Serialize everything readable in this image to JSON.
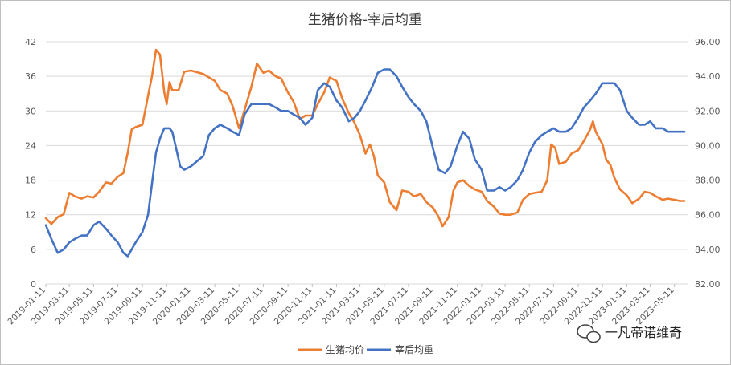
{
  "chart_data": {
    "type": "line",
    "title": "生猪价格-宰后均重",
    "x": [
      "2019-01-11",
      "2019-03-11",
      "2019-05-11",
      "2019-07-11",
      "2019-09-11",
      "2019-11-11",
      "2020-01-11",
      "2020-03-11",
      "2020-05-11",
      "2020-07-11",
      "2020-09-11",
      "2020-11-11",
      "2021-01-11",
      "2021-03-11",
      "2021-05-11",
      "2021-07-11",
      "2021-09-11",
      "2021-11-11",
      "2022-01-11",
      "2022-03-11",
      "2022-05-11",
      "2022-07-11",
      "2022-09-11",
      "2022-11-11",
      "2023-01-11",
      "2023-03-11",
      "2023-05-11"
    ],
    "xlim": [
      "2019-01-11",
      "2023-06-15"
    ],
    "ylim": [
      0,
      42
    ],
    "yticks": [
      "0",
      "6",
      "12",
      "18",
      "24",
      "30",
      "36",
      "42"
    ],
    "y2lim": [
      82,
      96
    ],
    "y2ticks": [
      "82.00",
      "84.00",
      "86.00",
      "88.00",
      "90.00",
      "92.00",
      "94.00",
      "96.00"
    ],
    "series": [
      {
        "name": "生猪均价",
        "axis": "left",
        "color": "#ED7D31",
        "points": [
          [
            "2019-01-11",
            11.4
          ],
          [
            "2019-01-25",
            10.4
          ],
          [
            "2019-02-10",
            11.6
          ],
          [
            "2019-02-25",
            12.1
          ],
          [
            "2019-03-11",
            15.8
          ],
          [
            "2019-03-25",
            15.2
          ],
          [
            "2019-04-11",
            14.8
          ],
          [
            "2019-04-25",
            15.2
          ],
          [
            "2019-05-11",
            15.0
          ],
          [
            "2019-05-25",
            16.0
          ],
          [
            "2019-06-11",
            17.6
          ],
          [
            "2019-06-25",
            17.4
          ],
          [
            "2019-07-11",
            18.6
          ],
          [
            "2019-07-25",
            19.2
          ],
          [
            "2019-08-05",
            22.8
          ],
          [
            "2019-08-15",
            26.8
          ],
          [
            "2019-08-25",
            27.2
          ],
          [
            "2019-09-11",
            27.6
          ],
          [
            "2019-09-25",
            32.6
          ],
          [
            "2019-10-05",
            36.0
          ],
          [
            "2019-10-15",
            40.6
          ],
          [
            "2019-10-25",
            39.8
          ],
          [
            "2019-11-05",
            33.2
          ],
          [
            "2019-11-11",
            31.2
          ],
          [
            "2019-11-18",
            35.0
          ],
          [
            "2019-11-25",
            33.6
          ],
          [
            "2019-12-11",
            33.6
          ],
          [
            "2019-12-25",
            36.8
          ],
          [
            "2020-01-11",
            37.0
          ],
          [
            "2020-02-11",
            36.4
          ],
          [
            "2020-03-11",
            35.2
          ],
          [
            "2020-03-25",
            33.6
          ],
          [
            "2020-04-11",
            33.0
          ],
          [
            "2020-04-25",
            30.8
          ],
          [
            "2020-05-11",
            27.0
          ],
          [
            "2020-05-25",
            30.2
          ],
          [
            "2020-06-11",
            34.2
          ],
          [
            "2020-06-25",
            38.2
          ],
          [
            "2020-07-11",
            36.6
          ],
          [
            "2020-07-25",
            37.0
          ],
          [
            "2020-08-11",
            36.0
          ],
          [
            "2020-08-25",
            35.6
          ],
          [
            "2020-09-11",
            33.2
          ],
          [
            "2020-09-25",
            31.6
          ],
          [
            "2020-10-11",
            28.6
          ],
          [
            "2020-10-25",
            29.2
          ],
          [
            "2020-11-11",
            29.2
          ],
          [
            "2020-11-25",
            31.2
          ],
          [
            "2020-12-11",
            33.2
          ],
          [
            "2020-12-25",
            35.8
          ],
          [
            "2021-01-11",
            35.2
          ],
          [
            "2021-01-25",
            32.2
          ],
          [
            "2021-02-11",
            29.6
          ],
          [
            "2021-02-25",
            28.0
          ],
          [
            "2021-03-11",
            25.8
          ],
          [
            "2021-03-25",
            22.6
          ],
          [
            "2021-04-05",
            24.2
          ],
          [
            "2021-04-15",
            22.2
          ],
          [
            "2021-04-25",
            18.8
          ],
          [
            "2021-05-11",
            17.6
          ],
          [
            "2021-05-25",
            14.2
          ],
          [
            "2021-06-11",
            12.8
          ],
          [
            "2021-06-25",
            16.2
          ],
          [
            "2021-07-11",
            16.0
          ],
          [
            "2021-07-25",
            15.2
          ],
          [
            "2021-08-11",
            15.6
          ],
          [
            "2021-08-25",
            14.2
          ],
          [
            "2021-09-11",
            13.2
          ],
          [
            "2021-09-25",
            11.6
          ],
          [
            "2021-10-05",
            10.0
          ],
          [
            "2021-10-20",
            11.6
          ],
          [
            "2021-11-01",
            16.2
          ],
          [
            "2021-11-11",
            17.6
          ],
          [
            "2021-11-25",
            18.0
          ],
          [
            "2021-12-11",
            17.0
          ],
          [
            "2021-12-25",
            16.4
          ],
          [
            "2022-01-11",
            16.0
          ],
          [
            "2022-01-25",
            14.4
          ],
          [
            "2022-02-11",
            13.4
          ],
          [
            "2022-02-25",
            12.2
          ],
          [
            "2022-03-11",
            12.0
          ],
          [
            "2022-03-25",
            12.0
          ],
          [
            "2022-04-11",
            12.4
          ],
          [
            "2022-04-25",
            14.6
          ],
          [
            "2022-05-11",
            15.6
          ],
          [
            "2022-05-25",
            15.8
          ],
          [
            "2022-06-11",
            16.0
          ],
          [
            "2022-06-25",
            18.0
          ],
          [
            "2022-07-05",
            24.2
          ],
          [
            "2022-07-15",
            23.6
          ],
          [
            "2022-07-25",
            20.8
          ],
          [
            "2022-08-11",
            21.2
          ],
          [
            "2022-08-25",
            22.6
          ],
          [
            "2022-09-11",
            23.2
          ],
          [
            "2022-09-25",
            24.8
          ],
          [
            "2022-10-11",
            26.8
          ],
          [
            "2022-10-18",
            28.2
          ],
          [
            "2022-10-25",
            26.4
          ],
          [
            "2022-11-11",
            24.2
          ],
          [
            "2022-11-20",
            21.6
          ],
          [
            "2022-12-01",
            20.6
          ],
          [
            "2022-12-11",
            18.4
          ],
          [
            "2022-12-25",
            16.4
          ],
          [
            "2023-01-11",
            15.4
          ],
          [
            "2023-01-25",
            14.0
          ],
          [
            "2023-02-11",
            14.8
          ],
          [
            "2023-02-25",
            16.0
          ],
          [
            "2023-03-11",
            15.8
          ],
          [
            "2023-03-25",
            15.2
          ],
          [
            "2023-04-11",
            14.6
          ],
          [
            "2023-04-25",
            14.8
          ],
          [
            "2023-05-11",
            14.6
          ],
          [
            "2023-05-25",
            14.4
          ],
          [
            "2023-06-05",
            14.4
          ]
        ]
      },
      {
        "name": "宰后均重",
        "axis": "right",
        "color": "#4472C4",
        "points": [
          [
            "2019-01-11",
            85.4
          ],
          [
            "2019-01-25",
            84.6
          ],
          [
            "2019-02-10",
            83.8
          ],
          [
            "2019-02-25",
            84.0
          ],
          [
            "2019-03-11",
            84.4
          ],
          [
            "2019-03-25",
            84.6
          ],
          [
            "2019-04-11",
            84.8
          ],
          [
            "2019-04-25",
            84.8
          ],
          [
            "2019-05-11",
            85.4
          ],
          [
            "2019-05-25",
            85.6
          ],
          [
            "2019-06-11",
            85.2
          ],
          [
            "2019-06-25",
            84.8
          ],
          [
            "2019-07-11",
            84.4
          ],
          [
            "2019-07-25",
            83.8
          ],
          [
            "2019-08-05",
            83.6
          ],
          [
            "2019-08-15",
            84.0
          ],
          [
            "2019-08-25",
            84.4
          ],
          [
            "2019-09-11",
            85.0
          ],
          [
            "2019-09-25",
            86.0
          ],
          [
            "2019-10-05",
            87.8
          ],
          [
            "2019-10-15",
            89.6
          ],
          [
            "2019-10-25",
            90.4
          ],
          [
            "2019-11-05",
            91.0
          ],
          [
            "2019-11-18",
            91.0
          ],
          [
            "2019-11-25",
            90.8
          ],
          [
            "2019-12-05",
            89.8
          ],
          [
            "2019-12-15",
            88.8
          ],
          [
            "2019-12-25",
            88.6
          ],
          [
            "2020-01-11",
            88.8
          ],
          [
            "2020-02-11",
            89.4
          ],
          [
            "2020-02-25",
            90.6
          ],
          [
            "2020-03-11",
            91.0
          ],
          [
            "2020-03-25",
            91.2
          ],
          [
            "2020-04-11",
            91.0
          ],
          [
            "2020-04-25",
            90.8
          ],
          [
            "2020-05-11",
            90.6
          ],
          [
            "2020-05-25",
            91.8
          ],
          [
            "2020-06-11",
            92.4
          ],
          [
            "2020-06-25",
            92.4
          ],
          [
            "2020-07-11",
            92.4
          ],
          [
            "2020-07-25",
            92.4
          ],
          [
            "2020-08-11",
            92.2
          ],
          [
            "2020-08-25",
            92.0
          ],
          [
            "2020-09-11",
            92.0
          ],
          [
            "2020-09-25",
            91.8
          ],
          [
            "2020-10-11",
            91.6
          ],
          [
            "2020-10-25",
            91.2
          ],
          [
            "2020-11-11",
            91.6
          ],
          [
            "2020-11-25",
            93.2
          ],
          [
            "2020-12-11",
            93.6
          ],
          [
            "2020-12-25",
            93.4
          ],
          [
            "2021-01-11",
            92.6
          ],
          [
            "2021-01-25",
            92.2
          ],
          [
            "2021-02-11",
            91.4
          ],
          [
            "2021-02-25",
            91.6
          ],
          [
            "2021-03-11",
            92.0
          ],
          [
            "2021-03-25",
            92.6
          ],
          [
            "2021-04-11",
            93.4
          ],
          [
            "2021-04-25",
            94.2
          ],
          [
            "2021-05-11",
            94.4
          ],
          [
            "2021-05-25",
            94.4
          ],
          [
            "2021-06-11",
            94.0
          ],
          [
            "2021-06-25",
            93.4
          ],
          [
            "2021-07-11",
            92.8
          ],
          [
            "2021-07-25",
            92.4
          ],
          [
            "2021-08-11",
            92.0
          ],
          [
            "2021-08-25",
            91.4
          ],
          [
            "2021-09-11",
            89.8
          ],
          [
            "2021-09-25",
            88.6
          ],
          [
            "2021-10-11",
            88.4
          ],
          [
            "2021-10-25",
            88.8
          ],
          [
            "2021-11-11",
            90.0
          ],
          [
            "2021-11-25",
            90.8
          ],
          [
            "2021-12-11",
            90.4
          ],
          [
            "2021-12-25",
            89.2
          ],
          [
            "2022-01-11",
            88.6
          ],
          [
            "2022-01-25",
            87.4
          ],
          [
            "2022-02-11",
            87.4
          ],
          [
            "2022-02-25",
            87.6
          ],
          [
            "2022-03-11",
            87.4
          ],
          [
            "2022-03-25",
            87.6
          ],
          [
            "2022-04-11",
            88.0
          ],
          [
            "2022-04-25",
            88.6
          ],
          [
            "2022-05-11",
            89.6
          ],
          [
            "2022-05-25",
            90.2
          ],
          [
            "2022-06-11",
            90.6
          ],
          [
            "2022-06-25",
            90.8
          ],
          [
            "2022-07-11",
            91.0
          ],
          [
            "2022-07-25",
            90.8
          ],
          [
            "2022-08-11",
            90.8
          ],
          [
            "2022-08-25",
            91.0
          ],
          [
            "2022-09-11",
            91.6
          ],
          [
            "2022-09-25",
            92.2
          ],
          [
            "2022-10-11",
            92.6
          ],
          [
            "2022-10-25",
            93.0
          ],
          [
            "2022-11-11",
            93.6
          ],
          [
            "2022-11-25",
            93.6
          ],
          [
            "2022-12-11",
            93.6
          ],
          [
            "2022-12-25",
            93.2
          ],
          [
            "2023-01-11",
            92.0
          ],
          [
            "2023-01-25",
            91.6
          ],
          [
            "2023-02-11",
            91.2
          ],
          [
            "2023-02-25",
            91.2
          ],
          [
            "2023-03-11",
            91.4
          ],
          [
            "2023-03-25",
            91.0
          ],
          [
            "2023-04-11",
            91.0
          ],
          [
            "2023-04-25",
            90.8
          ],
          [
            "2023-05-11",
            90.8
          ],
          [
            "2023-05-25",
            90.8
          ],
          [
            "2023-06-05",
            90.8
          ]
        ]
      }
    ],
    "legend_position": "bottom",
    "grid": true
  },
  "watermark": {
    "text": "一凡帝诺维奇"
  },
  "colors": {
    "grid": "#D9D9D9",
    "axis": "#BFBFBF",
    "border": "#BFBFBF"
  }
}
